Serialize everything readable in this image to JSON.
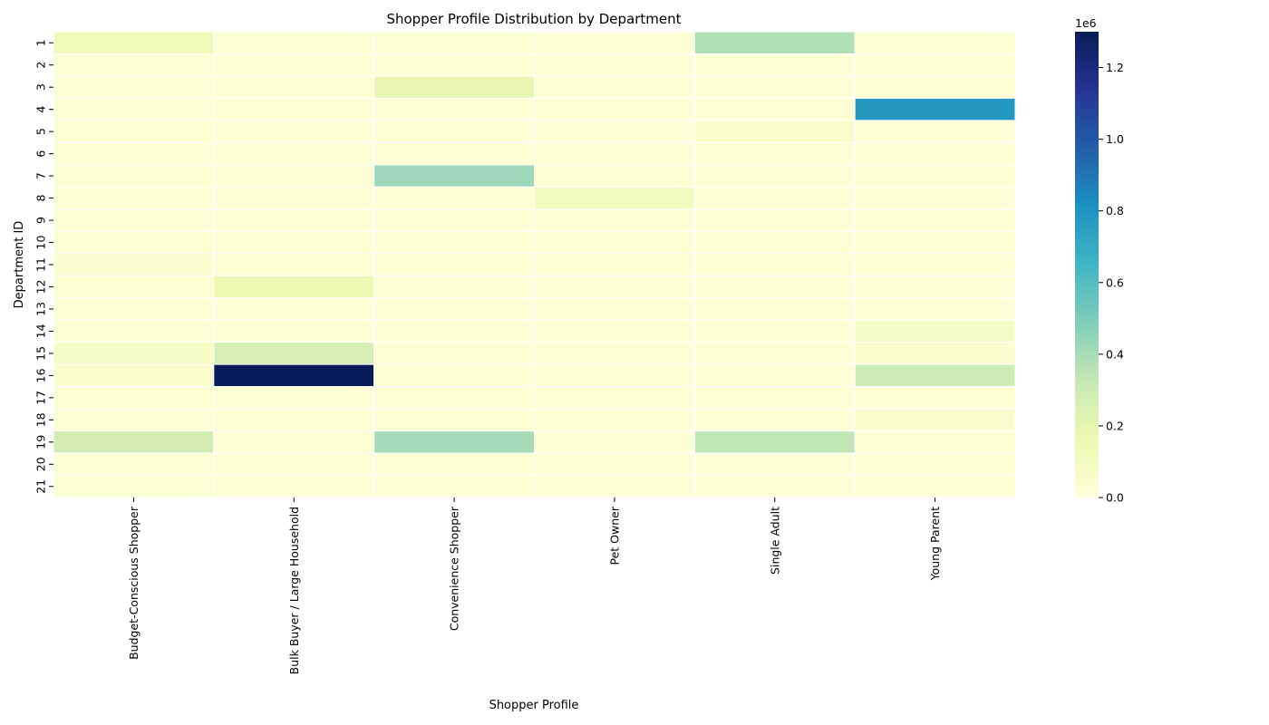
{
  "chart_data": {
    "type": "heatmap",
    "title": "Shopper Profile Distribution by Department",
    "xlabel": "Shopper Profile",
    "ylabel": "Department ID",
    "x_categories": [
      "Budget-Conscious Shopper",
      "Bulk Buyer / Large Household",
      "Convenience Shopper",
      "Pet Owner",
      "Single Adult",
      "Young Parent"
    ],
    "y_categories": [
      "1",
      "2",
      "3",
      "4",
      "5",
      "6",
      "7",
      "8",
      "9",
      "10",
      "11",
      "12",
      "13",
      "14",
      "15",
      "16",
      "17",
      "18",
      "19",
      "20",
      "21"
    ],
    "values": [
      [
        130000,
        25000,
        25000,
        20000,
        380000,
        25000
      ],
      [
        25000,
        20000,
        25000,
        20000,
        25000,
        25000
      ],
      [
        25000,
        20000,
        185000,
        20000,
        20000,
        20000
      ],
      [
        25000,
        20000,
        20000,
        20000,
        20000,
        780000
      ],
      [
        30000,
        15000,
        20000,
        15000,
        55000,
        15000
      ],
      [
        25000,
        20000,
        20000,
        20000,
        20000,
        20000
      ],
      [
        30000,
        25000,
        420000,
        20000,
        20000,
        20000
      ],
      [
        20000,
        15000,
        15000,
        110000,
        15000,
        15000
      ],
      [
        25000,
        20000,
        25000,
        20000,
        20000,
        20000
      ],
      [
        30000,
        25000,
        25000,
        20000,
        20000,
        20000
      ],
      [
        35000,
        20000,
        25000,
        20000,
        20000,
        20000
      ],
      [
        30000,
        160000,
        15000,
        15000,
        15000,
        15000
      ],
      [
        20000,
        15000,
        15000,
        15000,
        15000,
        15000
      ],
      [
        25000,
        20000,
        15000,
        15000,
        15000,
        80000
      ],
      [
        80000,
        270000,
        20000,
        20000,
        20000,
        40000
      ],
      [
        40000,
        1300000,
        20000,
        20000,
        20000,
        300000
      ],
      [
        30000,
        20000,
        20000,
        20000,
        20000,
        20000
      ],
      [
        25000,
        20000,
        25000,
        20000,
        25000,
        50000
      ],
      [
        280000,
        25000,
        400000,
        25000,
        340000,
        30000
      ],
      [
        25000,
        20000,
        20000,
        20000,
        25000,
        20000
      ],
      [
        25000,
        20000,
        20000,
        20000,
        20000,
        20000
      ]
    ],
    "vmin": 0,
    "vmax": 1300000,
    "colormap": "YlGnBu",
    "colorbar": {
      "ticks": [
        0,
        200000,
        400000,
        600000,
        800000,
        1000000,
        1200000
      ],
      "tick_labels": [
        "0.0",
        "0.2",
        "0.4",
        "0.6",
        "0.8",
        "1.0",
        "1.2"
      ],
      "exponent_label": "1e6"
    },
    "cell_border_color": "#ffffff",
    "grid": false
  }
}
